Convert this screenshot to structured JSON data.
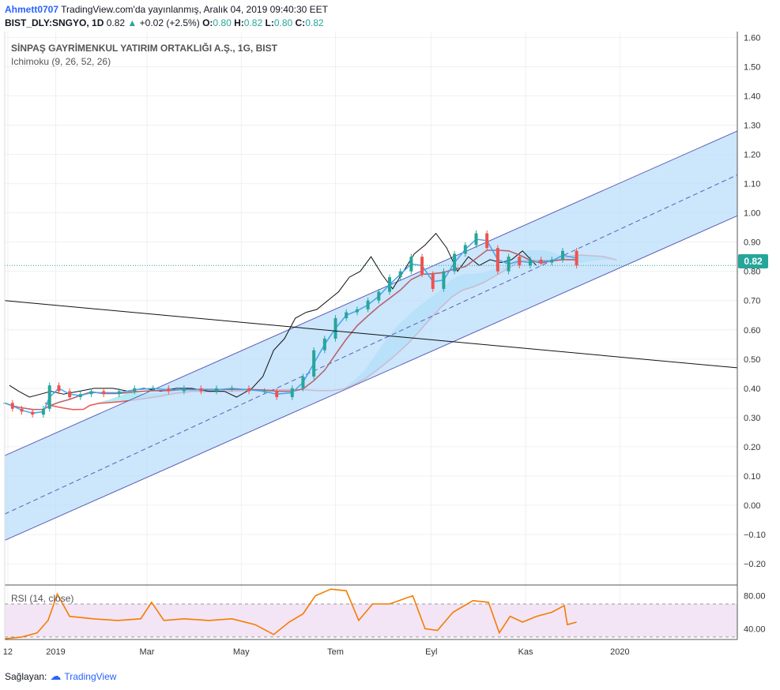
{
  "header": {
    "user": "Ahmett0707",
    "published": "TradingView.com'da yayınlanmış, Aralık 04, 2019 09:40:30 EET",
    "symbol": "BIST_DLY:SNGYO, 1D",
    "last": "0.82",
    "change": "+0.02 (+2.5%)",
    "open_label": "O:",
    "open": "0.80",
    "high_label": "H:",
    "high": "0.82",
    "low_label": "L:",
    "low": "0.80",
    "close_label": "C:",
    "close": "0.82"
  },
  "legend": {
    "title": "SİNPAŞ GAYRİMENKUL YATIRIM ORTAKLIĞI A.Ş., 1G, BIST",
    "indicator": "Ichimoku (9, 26, 52, 26)",
    "rsi": "RSI (14, close)"
  },
  "price_badge": "0.82",
  "footer": {
    "label": "Sağlayan:",
    "brand": "TradingView"
  },
  "colors": {
    "up": "#26a69a",
    "down": "#ef5350",
    "channel_fill": "#bbdefb",
    "channel_line": "#5c5fb8",
    "cloud_bear": "#f28b82",
    "cloud_bull": "#80deea",
    "tenkan": "#42a5f5",
    "kijun": "#b5656e",
    "rsi_line": "#f57c00",
    "rsi_band": "#f3e5f5"
  },
  "chart_data": [
    {
      "type": "line",
      "name": "price",
      "y_ticks": [
        "1.60",
        "1.50",
        "1.40",
        "1.30",
        "1.20",
        "1.10",
        "1.00",
        "0.90",
        "0.80",
        "0.70",
        "0.60",
        "0.50",
        "0.40",
        "0.30",
        "0.20",
        "0.10",
        "0.00",
        "−0.10",
        "−0.20"
      ],
      "ylim": [
        -0.27,
        1.62
      ],
      "x_labels": [
        "12",
        "2019",
        "Mar",
        "May",
        "Tem",
        "Eyl",
        "Kas",
        "2020"
      ],
      "x_dates": [
        "2018-12-01",
        "2019-01-01",
        "2019-03-01",
        "2019-05-01",
        "2019-07-01",
        "2019-09-01",
        "2019-11-01",
        "2020-01-01"
      ],
      "xlim": [
        "2018-11-29",
        "2020-03-17"
      ],
      "close": [
        [
          "2018-11-29",
          0.35
        ],
        [
          "2018-12-04",
          0.33
        ],
        [
          "2018-12-10",
          0.32
        ],
        [
          "2018-12-17",
          0.31
        ],
        [
          "2018-12-24",
          0.33
        ],
        [
          "2018-12-28",
          0.41
        ],
        [
          "2019-01-03",
          0.39
        ],
        [
          "2019-01-10",
          0.37
        ],
        [
          "2019-01-17",
          0.38
        ],
        [
          "2019-01-24",
          0.39
        ],
        [
          "2019-02-01",
          0.38
        ],
        [
          "2019-02-11",
          0.39
        ],
        [
          "2019-02-21",
          0.4
        ],
        [
          "2019-03-05",
          0.4
        ],
        [
          "2019-03-15",
          0.39
        ],
        [
          "2019-03-25",
          0.4
        ],
        [
          "2019-04-05",
          0.39
        ],
        [
          "2019-04-15",
          0.4
        ],
        [
          "2019-04-25",
          0.4
        ],
        [
          "2019-05-06",
          0.39
        ],
        [
          "2019-05-16",
          0.39
        ],
        [
          "2019-05-24",
          0.37
        ],
        [
          "2019-06-03",
          0.4
        ],
        [
          "2019-06-10",
          0.44
        ],
        [
          "2019-06-17",
          0.53
        ],
        [
          "2019-06-24",
          0.57
        ],
        [
          "2019-07-01",
          0.64
        ],
        [
          "2019-07-08",
          0.66
        ],
        [
          "2019-07-15",
          0.67
        ],
        [
          "2019-07-22",
          0.7
        ],
        [
          "2019-07-29",
          0.73
        ],
        [
          "2019-08-05",
          0.78
        ],
        [
          "2019-08-12",
          0.8
        ],
        [
          "2019-08-19",
          0.85
        ],
        [
          "2019-08-26",
          0.79
        ],
        [
          "2019-09-02",
          0.74
        ],
        [
          "2019-09-09",
          0.8
        ],
        [
          "2019-09-16",
          0.86
        ],
        [
          "2019-09-23",
          0.89
        ],
        [
          "2019-09-30",
          0.93
        ],
        [
          "2019-10-07",
          0.88
        ],
        [
          "2019-10-14",
          0.8
        ],
        [
          "2019-10-21",
          0.85
        ],
        [
          "2019-10-28",
          0.82
        ],
        [
          "2019-11-04",
          0.84
        ],
        [
          "2019-11-11",
          0.83
        ],
        [
          "2019-11-18",
          0.84
        ],
        [
          "2019-11-25",
          0.87
        ],
        [
          "2019-12-04",
          0.82
        ]
      ],
      "channel": {
        "upper": [
          [
            "2018-11-29",
            0.17
          ],
          [
            "2020-03-17",
            1.28
          ]
        ],
        "mid": [
          [
            "2018-11-29",
            -0.03
          ],
          [
            "2020-03-17",
            1.13
          ]
        ],
        "lower": [
          [
            "2018-11-29",
            -0.12
          ],
          [
            "2020-03-17",
            0.99
          ]
        ]
      },
      "trend_line": [
        [
          "2018-11-29",
          0.7
        ],
        [
          "2020-03-17",
          0.47
        ]
      ],
      "current_price": 0.82
    },
    {
      "type": "line",
      "name": "RSI (14, close)",
      "y_ticks": [
        "80.00",
        "40.00"
      ],
      "ylim": [
        27,
        92
      ],
      "band": [
        30,
        70
      ],
      "values": [
        [
          "2018-11-29",
          28
        ],
        [
          "2018-12-10",
          30
        ],
        [
          "2018-12-20",
          35
        ],
        [
          "2018-12-27",
          50
        ],
        [
          "2019-01-02",
          82
        ],
        [
          "2019-01-10",
          55
        ],
        [
          "2019-01-25",
          52
        ],
        [
          "2019-02-10",
          50
        ],
        [
          "2019-02-25",
          52
        ],
        [
          "2019-03-04",
          72
        ],
        [
          "2019-03-12",
          50
        ],
        [
          "2019-03-25",
          52
        ],
        [
          "2019-04-10",
          50
        ],
        [
          "2019-04-25",
          52
        ],
        [
          "2019-05-10",
          45
        ],
        [
          "2019-05-22",
          33
        ],
        [
          "2019-06-01",
          48
        ],
        [
          "2019-06-10",
          58
        ],
        [
          "2019-06-18",
          80
        ],
        [
          "2019-06-28",
          88
        ],
        [
          "2019-07-08",
          86
        ],
        [
          "2019-07-16",
          50
        ],
        [
          "2019-07-25",
          70
        ],
        [
          "2019-08-05",
          70
        ],
        [
          "2019-08-20",
          80
        ],
        [
          "2019-08-28",
          40
        ],
        [
          "2019-09-05",
          38
        ],
        [
          "2019-09-15",
          60
        ],
        [
          "2019-09-28",
          74
        ],
        [
          "2019-10-08",
          72
        ],
        [
          "2019-10-15",
          35
        ],
        [
          "2019-10-22",
          55
        ],
        [
          "2019-10-30",
          48
        ],
        [
          "2019-11-08",
          55
        ],
        [
          "2019-11-18",
          60
        ],
        [
          "2019-11-26",
          68
        ],
        [
          "2019-11-28",
          45
        ],
        [
          "2019-12-04",
          48
        ]
      ]
    }
  ]
}
